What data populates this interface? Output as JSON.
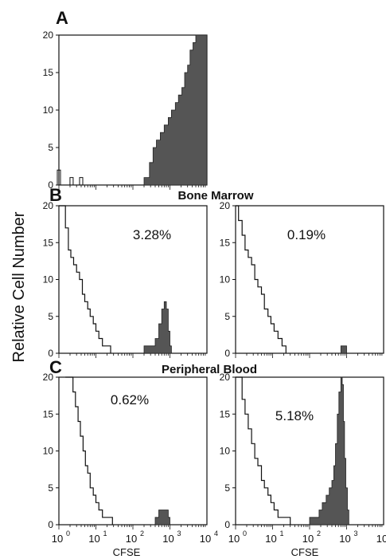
{
  "figure": {
    "y_axis_title": "Relative Cell Number",
    "x_axis_title": "CFSE",
    "row_titles": {
      "B": "Bone Marrow",
      "C": "Peripheral Blood"
    },
    "fill_color": "#555555"
  },
  "chart_data": [
    {
      "id": "A",
      "label": "A",
      "type": "histogram",
      "annotation": "",
      "xscale": "log",
      "xlim": [
        1,
        10000
      ],
      "ylim": [
        0,
        20
      ],
      "yticks": [
        0,
        5,
        10,
        15,
        20
      ],
      "xticks": [],
      "outline": [],
      "filled": [
        [
          200,
          1
        ],
        [
          280,
          3
        ],
        [
          350,
          5
        ],
        [
          430,
          6
        ],
        [
          550,
          7
        ],
        [
          700,
          8
        ],
        [
          900,
          9
        ],
        [
          1100,
          10
        ],
        [
          1400,
          11
        ],
        [
          1700,
          12
        ],
        [
          2100,
          13
        ],
        [
          2500,
          15
        ],
        [
          3000,
          16
        ],
        [
          3500,
          18
        ],
        [
          4200,
          19
        ],
        [
          5000,
          20
        ],
        [
          6000,
          20
        ],
        [
          10000,
          20
        ]
      ],
      "outliers": [
        [
          1.0,
          2
        ],
        [
          2.2,
          1
        ],
        [
          4.0,
          1
        ]
      ]
    },
    {
      "id": "B1",
      "label": "B",
      "type": "histogram",
      "annotation": "3.28%",
      "xscale": "log",
      "xlim": [
        1,
        10000
      ],
      "ylim": [
        0,
        20
      ],
      "yticks": [
        0,
        5,
        10,
        15,
        20
      ],
      "xticks": [],
      "outline": [
        [
          1,
          20
        ],
        [
          1.3,
          20
        ],
        [
          1.5,
          17
        ],
        [
          1.8,
          14
        ],
        [
          2.1,
          13
        ],
        [
          2.5,
          12
        ],
        [
          3,
          11
        ],
        [
          3.6,
          10
        ],
        [
          4.3,
          8
        ],
        [
          5,
          7
        ],
        [
          6,
          6
        ],
        [
          7,
          5
        ],
        [
          8.5,
          4
        ],
        [
          10,
          3
        ],
        [
          12,
          2
        ],
        [
          15,
          1
        ],
        [
          20,
          1
        ],
        [
          25,
          0
        ]
      ],
      "filled": [
        [
          200,
          1
        ],
        [
          300,
          1
        ],
        [
          400,
          2
        ],
        [
          500,
          4
        ],
        [
          600,
          6
        ],
        [
          700,
          7
        ],
        [
          800,
          6
        ],
        [
          900,
          3
        ],
        [
          1000,
          1
        ],
        [
          1100,
          0
        ]
      ],
      "outliers": []
    },
    {
      "id": "B2",
      "label": "",
      "type": "histogram",
      "annotation": "0.19%",
      "xscale": "log",
      "xlim": [
        1,
        10000
      ],
      "ylim": [
        0,
        20
      ],
      "yticks": [
        0,
        5,
        10,
        15,
        20
      ],
      "xticks": [],
      "outline": [
        [
          1,
          20
        ],
        [
          1.2,
          18
        ],
        [
          1.5,
          16
        ],
        [
          1.8,
          14
        ],
        [
          2.2,
          13
        ],
        [
          2.7,
          12
        ],
        [
          3.3,
          10
        ],
        [
          4,
          9
        ],
        [
          5,
          8
        ],
        [
          6,
          6
        ],
        [
          7.5,
          5
        ],
        [
          9,
          4
        ],
        [
          11,
          3
        ],
        [
          14,
          2
        ],
        [
          18,
          1
        ],
        [
          23,
          0
        ]
      ],
      "filled": [
        [
          650,
          0
        ],
        [
          700,
          1
        ],
        [
          900,
          1
        ],
        [
          1000,
          0
        ]
      ],
      "outliers": []
    },
    {
      "id": "C1",
      "label": "C",
      "type": "histogram",
      "annotation": "0.62%",
      "xscale": "log",
      "xlim": [
        1,
        10000
      ],
      "ylim": [
        0,
        20
      ],
      "yticks": [
        0,
        5,
        10,
        15,
        20
      ],
      "xticks": [
        "10^0",
        "10^1",
        "10^2",
        "10^3",
        "10^4"
      ],
      "outline": [
        [
          1.5,
          20
        ],
        [
          2,
          20
        ],
        [
          2.4,
          18
        ],
        [
          2.8,
          16
        ],
        [
          3.3,
          14
        ],
        [
          3.8,
          12
        ],
        [
          4.5,
          10
        ],
        [
          5.2,
          8
        ],
        [
          6,
          7
        ],
        [
          7,
          5
        ],
        [
          8.5,
          4
        ],
        [
          10,
          3
        ],
        [
          12,
          2
        ],
        [
          15,
          1
        ],
        [
          20,
          1
        ],
        [
          28,
          0
        ]
      ],
      "filled": [
        [
          300,
          0
        ],
        [
          400,
          1
        ],
        [
          500,
          2
        ],
        [
          600,
          2
        ],
        [
          700,
          2
        ],
        [
          800,
          2
        ],
        [
          900,
          1
        ],
        [
          1000,
          0
        ]
      ],
      "outliers": []
    },
    {
      "id": "C2",
      "label": "",
      "type": "histogram",
      "annotation": "5.18%",
      "xscale": "log",
      "xlim": [
        1,
        10000
      ],
      "ylim": [
        0,
        20
      ],
      "yticks": [
        0,
        5,
        10,
        15,
        20
      ],
      "xticks": [
        "10^0",
        "10^1",
        "10^2",
        "10^3",
        "10^4"
      ],
      "outline": [
        [
          1,
          20
        ],
        [
          1.2,
          20
        ],
        [
          1.5,
          17
        ],
        [
          1.8,
          15
        ],
        [
          2.2,
          13
        ],
        [
          2.7,
          11
        ],
        [
          3.3,
          9
        ],
        [
          4,
          8
        ],
        [
          5,
          6
        ],
        [
          6,
          5
        ],
        [
          7.5,
          4
        ],
        [
          9,
          3
        ],
        [
          11,
          2
        ],
        [
          14,
          1
        ],
        [
          20,
          1
        ],
        [
          30,
          0
        ]
      ],
      "filled": [
        [
          80,
          0
        ],
        [
          100,
          1
        ],
        [
          130,
          1
        ],
        [
          180,
          2
        ],
        [
          220,
          3
        ],
        [
          280,
          4
        ],
        [
          340,
          5
        ],
        [
          400,
          6
        ],
        [
          450,
          8
        ],
        [
          500,
          11
        ],
        [
          560,
          15
        ],
        [
          620,
          18
        ],
        [
          700,
          20
        ],
        [
          760,
          19
        ],
        [
          820,
          14
        ],
        [
          880,
          9
        ],
        [
          950,
          5
        ],
        [
          1050,
          2
        ],
        [
          1150,
          0
        ]
      ],
      "outliers": []
    }
  ],
  "xtick_labels": {
    "base": "10",
    "exponents": [
      "0",
      "1",
      "2",
      "3",
      "4"
    ]
  },
  "ytick_labels": [
    "0",
    "5",
    "10",
    "15",
    "20"
  ]
}
